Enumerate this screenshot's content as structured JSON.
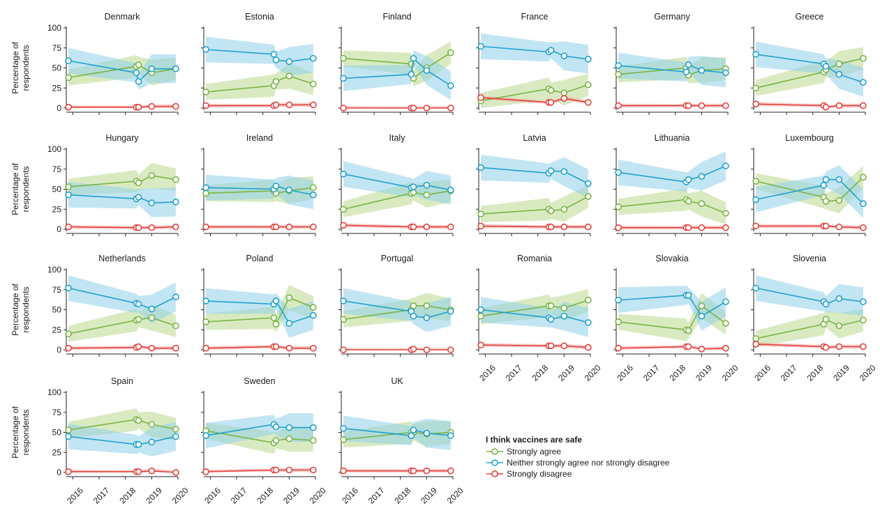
{
  "colors": {
    "strongly_agree": "#78b443",
    "neither": "#1ea1cf",
    "strongly_disagree": "#e2403c",
    "band_strongly_agree": "#b9d98e",
    "band_neither": "#8fd0ea",
    "band_strongly_disagree": "#f4a9a4"
  },
  "legend": {
    "title": "I think vaccines are safe",
    "items": [
      {
        "key": "strongly_agree",
        "label": "Strongly agree"
      },
      {
        "key": "neither",
        "label": "Neither strongly agree nor strongly disagree"
      },
      {
        "key": "strongly_disagree",
        "label": "Strongly disagree"
      }
    ]
  },
  "y_axis_label": "Percentage of respondents",
  "chart_data": {
    "type": "line",
    "layout": "small-multiples",
    "ylabel": "Percentage of respondents",
    "ylim": [
      0,
      100
    ],
    "yticks": [
      0,
      25,
      50,
      75,
      100
    ],
    "xlim": [
      "2015-10",
      "2020-01"
    ],
    "xticks": [
      "2016",
      "2017",
      "2018",
      "2019",
      "2020"
    ],
    "series_names": [
      "Strongly agree",
      "Neither strongly agree nor strongly disagree",
      "Strongly disagree"
    ],
    "survey_dates": [
      "2015-11",
      "2018-06",
      "2018-07",
      "2019-01",
      "2019-12"
    ],
    "panels": [
      {
        "country": "Denmark",
        "agree": [
          38,
          52,
          54,
          44,
          49
        ],
        "neither": [
          59,
          44,
          33,
          49,
          49
        ],
        "disagree": [
          1,
          1,
          1,
          2,
          2
        ]
      },
      {
        "country": "Estonia",
        "agree": [
          20,
          28,
          33,
          40,
          30
        ],
        "neither": [
          73,
          67,
          60,
          58,
          62
        ],
        "disagree": [
          3,
          3,
          4,
          4,
          4
        ]
      },
      {
        "country": "Finland",
        "agree": [
          62,
          55,
          37,
          50,
          69
        ],
        "neither": [
          37,
          42,
          62,
          47,
          28
        ],
        "disagree": [
          0,
          0,
          0,
          0,
          0
        ]
      },
      {
        "country": "France",
        "agree": [
          9,
          24,
          22,
          19,
          29
        ],
        "neither": [
          77,
          70,
          72,
          65,
          61
        ],
        "disagree": [
          13,
          7,
          7,
          12,
          7
        ]
      },
      {
        "country": "Germany",
        "agree": [
          42,
          50,
          41,
          47,
          49
        ],
        "neither": [
          53,
          45,
          54,
          47,
          44
        ],
        "disagree": [
          3,
          3,
          3,
          3,
          3
        ]
      },
      {
        "country": "Greece",
        "agree": [
          25,
          45,
          48,
          55,
          62
        ],
        "neither": [
          67,
          55,
          52,
          42,
          32
        ],
        "disagree": [
          5,
          3,
          1,
          3,
          3
        ]
      },
      {
        "country": "Hungary",
        "agree": [
          53,
          60,
          58,
          67,
          62
        ],
        "neither": [
          43,
          38,
          40,
          33,
          34
        ],
        "disagree": [
          3,
          2,
          2,
          2,
          3
        ]
      },
      {
        "country": "Ireland",
        "agree": [
          45,
          48,
          45,
          48,
          52
        ],
        "neither": [
          52,
          50,
          54,
          49,
          43
        ],
        "disagree": [
          3,
          3,
          3,
          3,
          3
        ]
      },
      {
        "country": "Italy",
        "agree": [
          25,
          45,
          46,
          43,
          48
        ],
        "neither": [
          69,
          52,
          53,
          55,
          49
        ],
        "disagree": [
          5,
          3,
          3,
          3,
          3
        ]
      },
      {
        "country": "Latvia",
        "agree": [
          19,
          25,
          23,
          25,
          41
        ],
        "neither": [
          77,
          70,
          73,
          72,
          57
        ],
        "disagree": [
          4,
          3,
          3,
          3,
          3
        ]
      },
      {
        "country": "Lithuania",
        "agree": [
          28,
          37,
          35,
          32,
          20
        ],
        "neither": [
          71,
          59,
          62,
          66,
          79
        ],
        "disagree": [
          2,
          2,
          2,
          2,
          2
        ]
      },
      {
        "country": "Luxembourg",
        "agree": [
          60,
          40,
          35,
          36,
          65
        ],
        "neither": [
          37,
          55,
          62,
          62,
          32
        ],
        "disagree": [
          4,
          4,
          4,
          3,
          2
        ]
      },
      {
        "country": "Netherlands",
        "agree": [
          20,
          37,
          38,
          40,
          30
        ],
        "neither": [
          77,
          58,
          57,
          51,
          66
        ],
        "disagree": [
          2,
          3,
          4,
          2,
          2
        ]
      },
      {
        "country": "Poland",
        "agree": [
          35,
          40,
          32,
          65,
          53
        ],
        "neither": [
          61,
          57,
          61,
          33,
          43
        ],
        "disagree": [
          2,
          4,
          4,
          2,
          2
        ]
      },
      {
        "country": "Portugal",
        "agree": [
          38,
          50,
          55,
          55,
          50
        ],
        "neither": [
          61,
          48,
          42,
          40,
          48
        ],
        "disagree": [
          0,
          0,
          1,
          0,
          0
        ]
      },
      {
        "country": "Romania",
        "agree": [
          42,
          55,
          55,
          52,
          62
        ],
        "neither": [
          50,
          40,
          38,
          42,
          34
        ],
        "disagree": [
          6,
          5,
          5,
          5,
          3
        ]
      },
      {
        "country": "Slovakia",
        "agree": [
          35,
          25,
          24,
          55,
          33
        ],
        "neither": [
          62,
          68,
          68,
          42,
          60
        ],
        "disagree": [
          2,
          4,
          4,
          1,
          2
        ]
      },
      {
        "country": "Slovenia",
        "agree": [
          14,
          32,
          38,
          30,
          37
        ],
        "neither": [
          77,
          60,
          57,
          64,
          60
        ],
        "disagree": [
          7,
          4,
          3,
          4,
          4
        ]
      },
      {
        "country": "Spain",
        "agree": [
          53,
          66,
          65,
          60,
          54
        ],
        "neither": [
          45,
          35,
          35,
          38,
          45
        ],
        "disagree": [
          1,
          1,
          1,
          2,
          0
        ]
      },
      {
        "country": "Sweden",
        "agree": [
          52,
          37,
          40,
          42,
          40
        ],
        "neither": [
          46,
          60,
          57,
          56,
          56
        ],
        "disagree": [
          1,
          3,
          3,
          3,
          3
        ]
      },
      {
        "country": "UK",
        "agree": [
          41,
          50,
          50,
          48,
          50
        ],
        "neither": [
          55,
          46,
          53,
          49,
          46
        ],
        "disagree": [
          2,
          2,
          2,
          2,
          2
        ]
      }
    ]
  }
}
